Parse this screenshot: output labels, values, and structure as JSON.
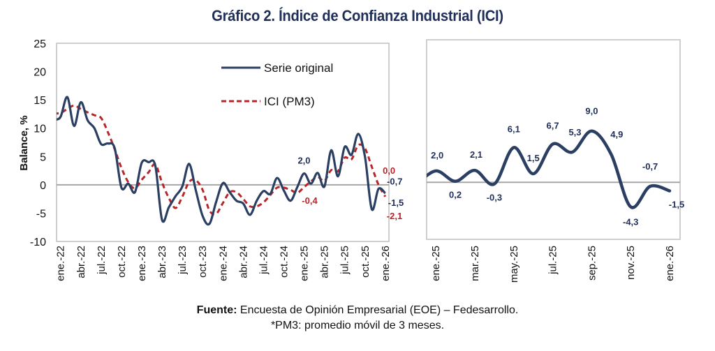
{
  "title": "Gráfico 2. Índice de Confianza Industrial (ICI)",
  "footer": {
    "source_label": "Fuente:",
    "source_text": " Encuesta de Opinión Empresarial (EOE) – Fedesarrollo.",
    "note": "*PM3: promedio móvil de 3 meses."
  },
  "colors": {
    "original": "#2b3f63",
    "pm3": "#b8262b",
    "label_original": "#1f2f58",
    "label_pm3": "#b8262b",
    "frame": "#bfbfbf",
    "zero_line": "#a6a6a6"
  },
  "chart_data": [
    {
      "type": "line",
      "title": "",
      "ylabel": "Balance, %",
      "xlabel": "",
      "ylim": [
        -10,
        25
      ],
      "yticks": [
        "25",
        "20",
        "15",
        "10",
        "5",
        "0",
        "-5",
        "-10"
      ],
      "ytick_values": [
        25,
        20,
        15,
        10,
        5,
        0,
        -5,
        -10
      ],
      "grid": false,
      "legend": "top-center",
      "x_tick_labels": [
        "ene.-22",
        "abr.-22",
        "jul.-22",
        "oct.-22",
        "ene.-23",
        "abr.-23",
        "jul.-23",
        "oct.-23",
        "ene.-24",
        "abr.-24",
        "jul.-24",
        "oct.-24",
        "ene.-25",
        "abr.-25",
        "jul.-25",
        "oct.-25",
        "ene.-26"
      ],
      "x": [
        "ene.-22",
        "feb.-22",
        "mar.-22",
        "abr.-22",
        "may.-22",
        "jun.-22",
        "jul.-22",
        "ago.-22",
        "sep.-22",
        "oct.-22",
        "nov.-22",
        "dic.-22",
        "ene.-23",
        "feb.-23",
        "mar.-23",
        "abr.-23",
        "may.-23",
        "jun.-23",
        "jul.-23",
        "ago.-23",
        "sep.-23",
        "oct.-23",
        "nov.-23",
        "dic.-23",
        "ene.-24",
        "feb.-24",
        "mar.-24",
        "abr.-24",
        "may.-24",
        "jun.-24",
        "jul.-24",
        "ago.-24",
        "sep.-24",
        "oct.-24",
        "nov.-24",
        "dic.-24",
        "ene.-25",
        "feb.-25",
        "mar.-25",
        "abr.-25",
        "may.-25",
        "jun.-25",
        "jul.-25",
        "ago.-25",
        "sep.-25",
        "oct.-25",
        "nov.-25",
        "dic.-25",
        "ene.-26"
      ],
      "series": [
        {
          "name": "Serie original",
          "style": "solid",
          "values": [
            12.0,
            15.5,
            10.4,
            14.6,
            11.4,
            10.0,
            7.2,
            7.3,
            6.5,
            -0.5,
            0.2,
            -1.3,
            3.9,
            4.0,
            3.4,
            -6.2,
            -4.0,
            -2.0,
            -0.3,
            3.7,
            -1.0,
            -5.5,
            -6.9,
            -3.0,
            0.3,
            -1.3,
            -2.8,
            -3.3,
            -5.3,
            -2.8,
            -1.1,
            -1.6,
            1.2,
            -1.0,
            -2.8,
            -0.4,
            2.0,
            0.2,
            2.1,
            -0.3,
            6.1,
            1.5,
            6.7,
            5.3,
            9.0,
            4.9,
            -4.3,
            -0.7,
            -1.5
          ]
        },
        {
          "name": "ICI (PM3)",
          "style": "dashed",
          "values": [
            12.7,
            13.4,
            14.0,
            13.4,
            12.8,
            12.3,
            11.8,
            9.3,
            6.3,
            3.0,
            0.5,
            -0.6,
            0.9,
            2.2,
            3.6,
            0.4,
            -2.3,
            -4.1,
            -2.1,
            0.5,
            0.8,
            -0.9,
            -4.5,
            -5.1,
            -3.2,
            -1.3,
            -1.3,
            -2.5,
            -3.8,
            -3.8,
            -3.1,
            -1.8,
            -0.5,
            -0.5,
            -0.9,
            -1.4,
            -0.4,
            0.6,
            1.4,
            0.7,
            2.6,
            2.4,
            4.8,
            4.5,
            7.0,
            6.4,
            3.2,
            0.0,
            -2.1
          ]
        }
      ],
      "annotations": [
        {
          "series": "Serie original",
          "x": "ene.-25",
          "text": "2,0"
        },
        {
          "series": "ICI (PM3)",
          "x": "ene.-25",
          "text": "-0,4"
        },
        {
          "series": "ICI (PM3)",
          "x": "dic.-25",
          "text": "0,0"
        },
        {
          "series": "Serie original",
          "x": "dic.-25",
          "text": "-0,7"
        },
        {
          "series": "Serie original",
          "x": "ene.-26",
          "text": "-1,5"
        },
        {
          "series": "ICI (PM3)",
          "x": "ene.-26",
          "text": "-2,1"
        }
      ]
    },
    {
      "type": "line",
      "title": "",
      "ylabel": "",
      "xlabel": "",
      "ylim": [
        -10,
        25
      ],
      "grid": false,
      "x_tick_labels": [
        "ene.-25",
        "mar.-25",
        "may.-25",
        "jul.-25",
        "sep.-25",
        "nov.-25",
        "ene.-26"
      ],
      "x": [
        "dic.-24",
        "ene.-25",
        "feb.-25",
        "mar.-25",
        "abr.-25",
        "may.-25",
        "jun.-25",
        "jul.-25",
        "ago.-25",
        "sep.-25",
        "oct.-25",
        "nov.-25",
        "dic.-25",
        "ene.-26"
      ],
      "series": [
        {
          "name": "Serie original",
          "style": "solid",
          "values": [
            -0.4,
            2.0,
            0.2,
            2.1,
            -0.3,
            6.1,
            1.5,
            6.7,
            5.3,
            9.0,
            4.9,
            -4.3,
            -0.7,
            -1.5
          ]
        }
      ],
      "data_labels": [
        "",
        "2,0",
        "0,2",
        "2,1",
        "-0,3",
        "6,1",
        "1,5",
        "6,7",
        "5,3",
        "9,0",
        "4,9",
        "-4,3",
        "-0,7",
        "-1,5"
      ]
    }
  ]
}
